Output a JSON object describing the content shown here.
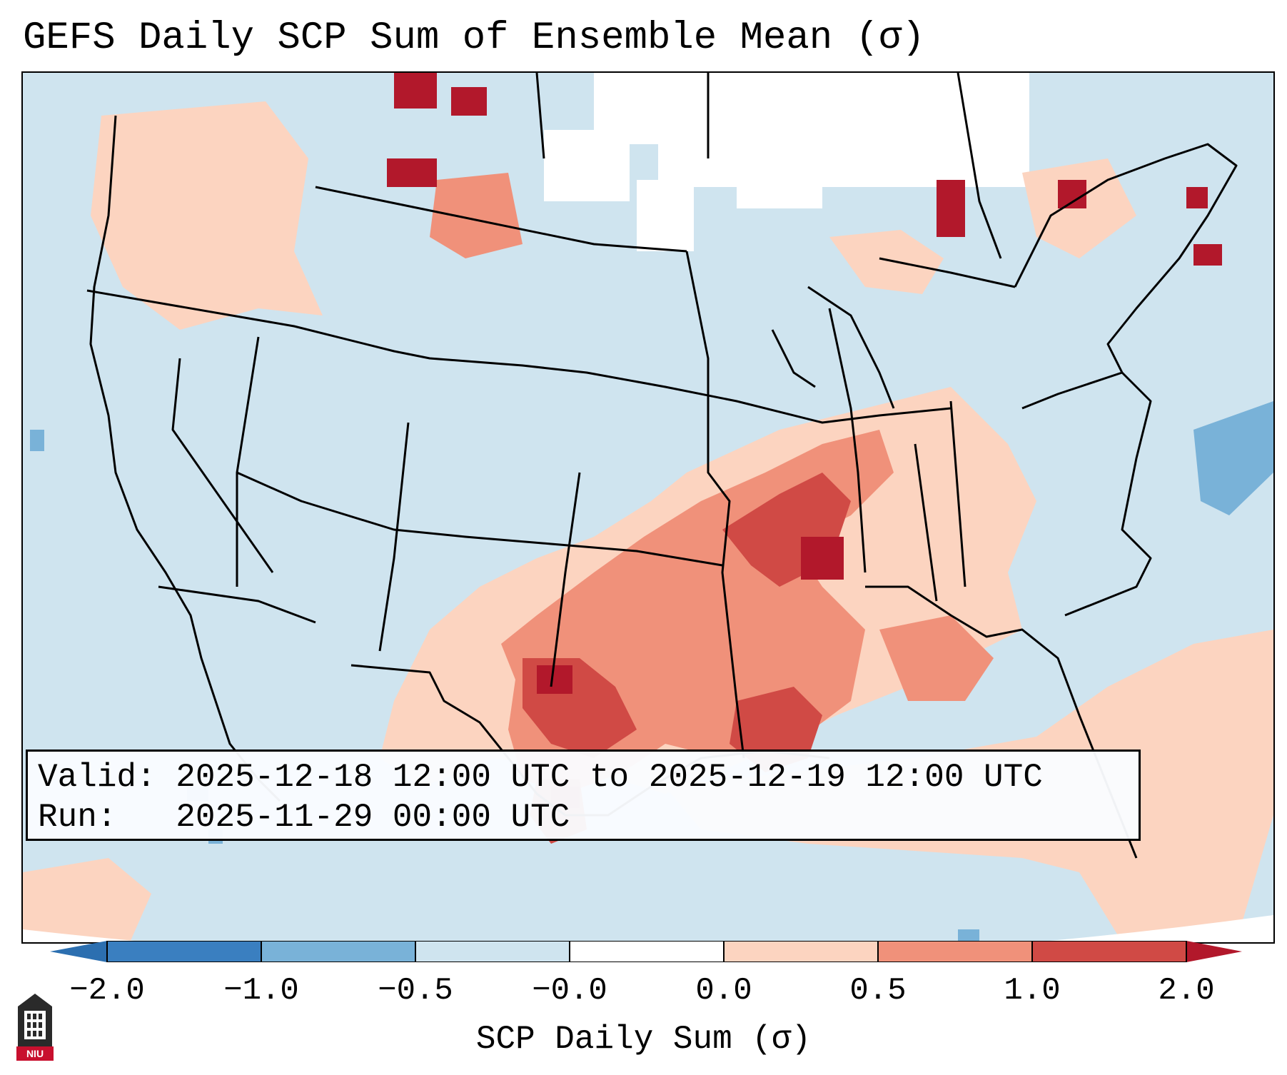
{
  "title": "GEFS Daily SCP Sum of Ensemble Mean (σ)",
  "info": {
    "valid_label": "Valid:",
    "valid_value": "2025-12-18 12:00 UTC to 2025-12-19 12:00 UTC",
    "run_label": "Run:",
    "run_value": "2025-11-29 00:00 UTC"
  },
  "colorbar": {
    "label": "SCP Daily Sum (σ)",
    "ticks": [
      "−2.0",
      "−1.0",
      "−0.5",
      "−0.0",
      "0.0",
      "0.5",
      "1.0",
      "2.0"
    ],
    "colors": [
      "#3a7fc0",
      "#79b2d8",
      "#cfe4ef",
      "#ffffff",
      "#fcd4c0",
      "#f0917a",
      "#d04a45"
    ],
    "extend_low": "#2c6fb0",
    "extend_high": "#b2182b"
  },
  "map": {
    "projection": "Lambert Conformal, CONUS",
    "background_color": "#cfe4ef",
    "positive_colors": {
      "light": "#fcd4c0",
      "medium": "#f0917a",
      "strong": "#d04a45",
      "extreme": "#b2182b"
    },
    "negative_colors": {
      "light": "#a9cfe6",
      "medium": "#79b2d8"
    }
  },
  "logo": {
    "text": "NIU",
    "icon": "niu-logo-icon"
  }
}
